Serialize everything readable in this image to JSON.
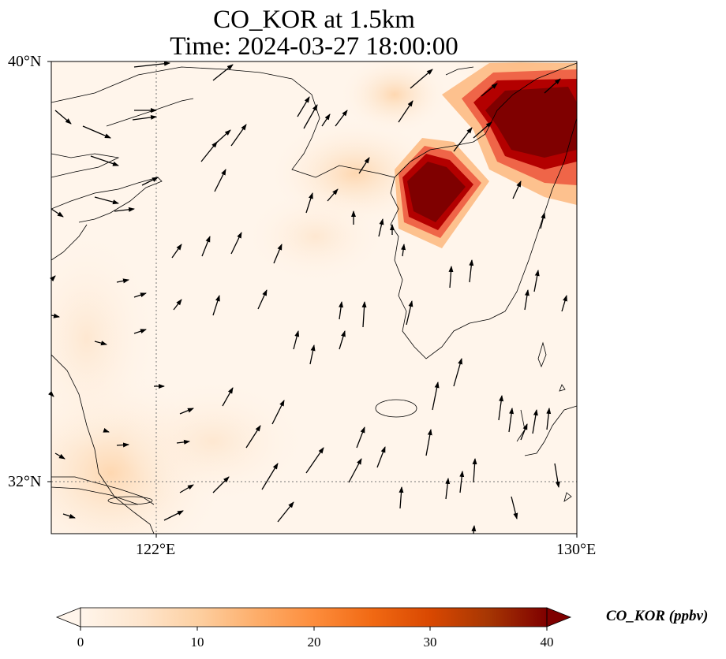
{
  "title": "CO_KOR at 1.5km",
  "subtitle": "Time: 2024-03-27 18:00:00",
  "lat_labels": [
    "40°N",
    "32°N"
  ],
  "lon_labels": [
    "122°E",
    "130°E"
  ],
  "colorbar": {
    "label": "CO_KOR (ppbv)",
    "ticks": [
      "0",
      "10",
      "20",
      "30",
      "40"
    ],
    "min": 0,
    "max": 40,
    "colormap": [
      "#fff5eb",
      "#fee6ce",
      "#fdd0a2",
      "#fdae6b",
      "#fd8d3c",
      "#f16913",
      "#d94801",
      "#a63603",
      "#7f0000"
    ]
  },
  "map": {
    "extent_lon": [
      120,
      130
    ],
    "extent_lat": [
      31,
      40
    ],
    "gridlines_lon": [
      122
    ],
    "gridlines_lat": [
      32
    ],
    "high_concentration_areas": [
      {
        "description": "North Korea west coast plume",
        "value_ppbv": 40
      },
      {
        "description": "North Korea east coast plume",
        "value_ppbv": 40
      }
    ]
  }
}
